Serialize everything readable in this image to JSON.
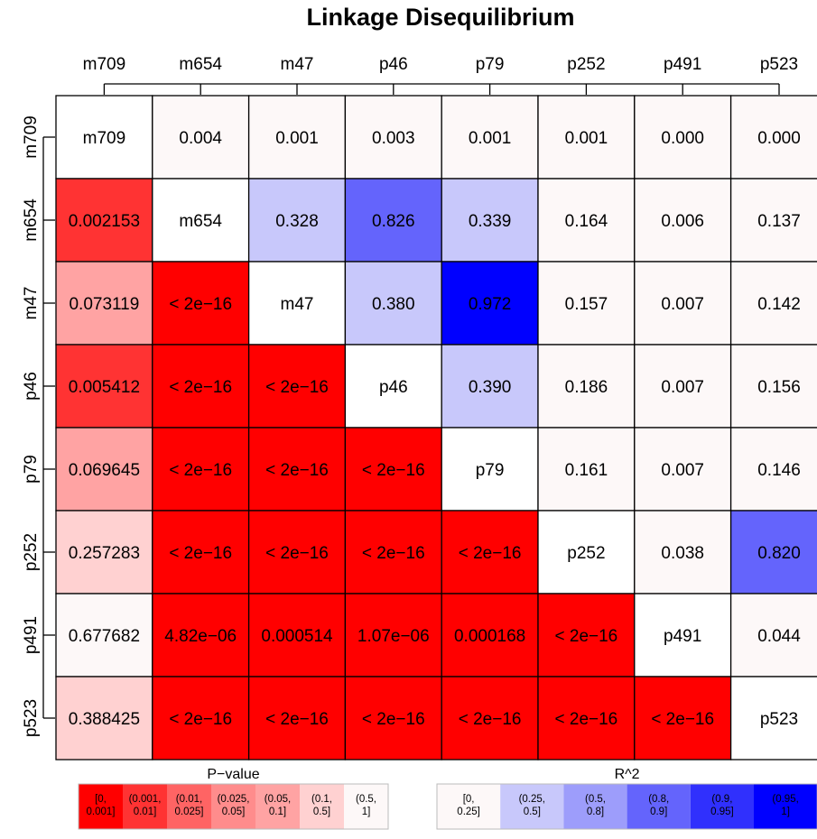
{
  "chart_data": {
    "type": "heatmap",
    "title": "Linkage Disequilibrium",
    "markers": [
      "m709",
      "m654",
      "m47",
      "p46",
      "p79",
      "p252",
      "p491",
      "p523"
    ],
    "upper_triangle_metric": "R^2",
    "lower_triangle_metric": "P-value",
    "cells": [
      [
        "m709",
        "0.004",
        "0.001",
        "0.003",
        "0.001",
        "0.001",
        "0.000",
        "0.000"
      ],
      [
        "0.002153",
        "m654",
        "0.328",
        "0.826",
        "0.339",
        "0.164",
        "0.006",
        "0.137"
      ],
      [
        "0.073119",
        "< 2e−16",
        "m47",
        "0.380",
        "0.972",
        "0.157",
        "0.007",
        "0.142"
      ],
      [
        "0.005412",
        "< 2e−16",
        "< 2e−16",
        "p46",
        "0.390",
        "0.186",
        "0.007",
        "0.156"
      ],
      [
        "0.069645",
        "< 2e−16",
        "< 2e−16",
        "< 2e−16",
        "p79",
        "0.161",
        "0.007",
        "0.146"
      ],
      [
        "0.257283",
        "< 2e−16",
        "< 2e−16",
        "< 2e−16",
        "< 2e−16",
        "p252",
        "0.038",
        "0.820"
      ],
      [
        "0.677682",
        "4.82e−06",
        "0.000514",
        "1.07e−06",
        "0.000168",
        "< 2e−16",
        "p491",
        "0.044"
      ],
      [
        "0.388425",
        "< 2e−16",
        "< 2e−16",
        "< 2e−16",
        "< 2e−16",
        "< 2e−16",
        "< 2e−16",
        "p523"
      ]
    ],
    "pvalue_legend": {
      "title": "P−value",
      "bins": [
        "[0,\n0.001]",
        "(0.001,\n0.01]",
        "(0.01,\n0.025]",
        "(0.025,\n0.05]",
        "(0.05,\n0.1]",
        "(0.1,\n0.5]",
        "(0.5,\n1]"
      ],
      "colors": [
        "#ff0000",
        "#ff3333",
        "#ff6464",
        "#ff8c8c",
        "#ffa3a3",
        "#ffd1d1",
        "#fdf8f8"
      ]
    },
    "r2_legend": {
      "title": "R^2",
      "bins": [
        "[0,\n0.25]",
        "(0.25,\n0.5]",
        "(0.5,\n0.8]",
        "(0.8,\n0.9]",
        "(0.9,\n0.95]",
        "(0.95,\n1]"
      ],
      "colors": [
        "#fdf8f8",
        "#c8c8fb",
        "#9d9dfb",
        "#6464fc",
        "#3030fd",
        "#0000ff"
      ]
    },
    "diagonal_color": "#ffffff",
    "grid": true
  }
}
